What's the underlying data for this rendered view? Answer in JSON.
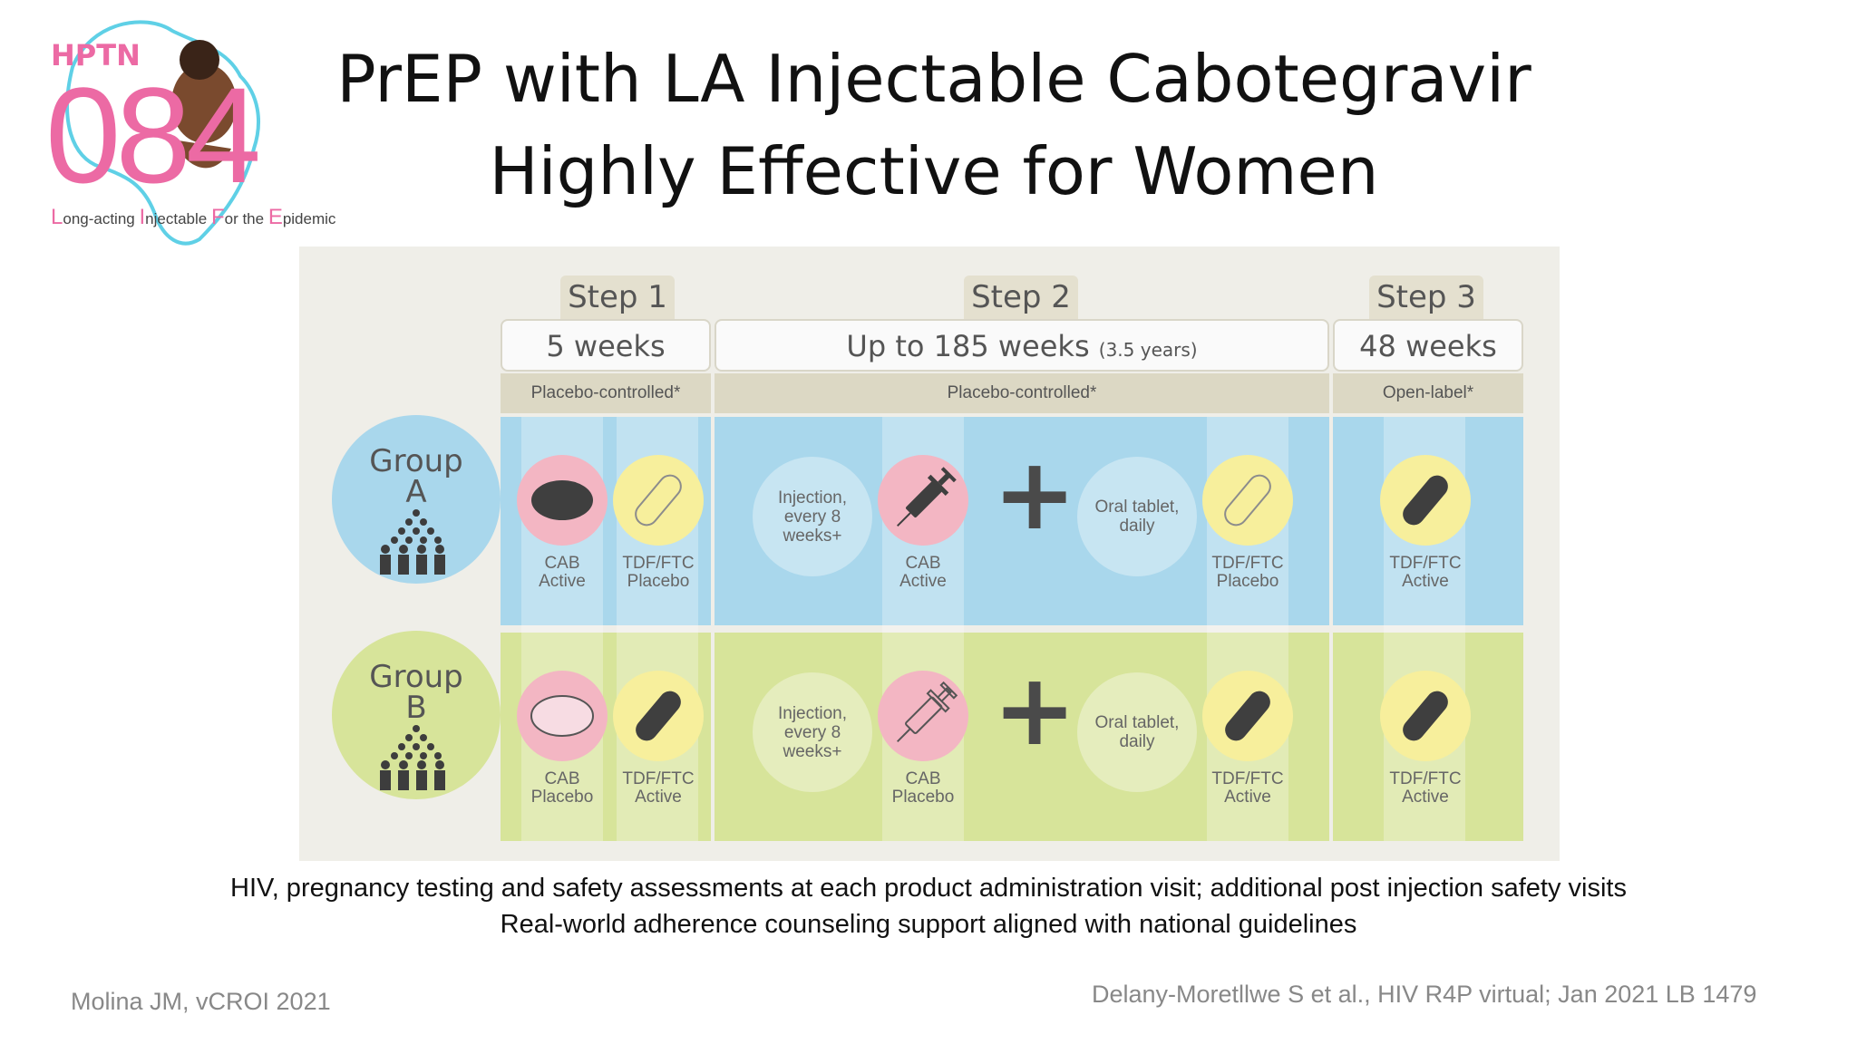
{
  "logo": {
    "hptn": "HPTN",
    "number": "084",
    "tagline_parts": [
      "L",
      "ong-acting ",
      "I",
      "njectable ",
      "F",
      "or the ",
      "E",
      "pidemic"
    ]
  },
  "title": {
    "line1": "PrEP with LA Injectable Cabotegravir",
    "line2": "Highly Effective for Women"
  },
  "diagram": {
    "steps": [
      {
        "label": "Step 1",
        "duration": "5 weeks",
        "duration_note": "",
        "design": "Placebo-controlled*"
      },
      {
        "label": "Step 2",
        "duration": "Up to 185 weeks",
        "duration_note": "(3.5 years)",
        "design": "Placebo-controlled*"
      },
      {
        "label": "Step 3",
        "duration": "48 weeks",
        "duration_note": "",
        "design": "Open-label*"
      }
    ],
    "groups": [
      {
        "name": "Group\nA",
        "color": "#a9d7ec",
        "step1": [
          {
            "label": "CAB\nActive"
          },
          {
            "label": "TDF/FTC\nPlacebo"
          }
        ],
        "step2_injection_note": "Injection,\nevery 8\nweeks+",
        "step2_injection": "CAB\nActive",
        "step2_oral_note": "Oral tablet,\ndaily",
        "step2_oral": "TDF/FTC\nPlacebo",
        "step3": "TDF/FTC\nActive"
      },
      {
        "name": "Group\nB",
        "color": "#d7e49a",
        "step1": [
          {
            "label": "CAB\nPlacebo"
          },
          {
            "label": "TDF/FTC\nActive"
          }
        ],
        "step2_injection_note": "Injection,\nevery 8\nweeks+",
        "step2_injection": "CAB\nPlacebo",
        "step2_oral_note": "Oral tablet,\ndaily",
        "step2_oral": "TDF/FTC\nActive",
        "step3": "TDF/FTC\nActive"
      }
    ],
    "plus_sign": "+"
  },
  "notes": {
    "line1": "HIV, pregnancy testing and safety assessments at each product administration visit; additional post injection safety visits",
    "line2": "Real-world adherence counseling support aligned with national guidelines"
  },
  "citations": {
    "left": "Molina JM, vCROI 2021",
    "right": "Delany-Moretllwe S et al., HIV R4P virtual; Jan 2021 LB 1479"
  },
  "colors": {
    "group_a": "#a9d7ec",
    "group_b": "#d7e49a",
    "pink": "#f3b6c3",
    "yellow": "#f7ef9c",
    "logo_pink": "#ec6aa4",
    "logo_cyan": "#5fd0e6",
    "pill_dark": "#3f3f3f"
  }
}
